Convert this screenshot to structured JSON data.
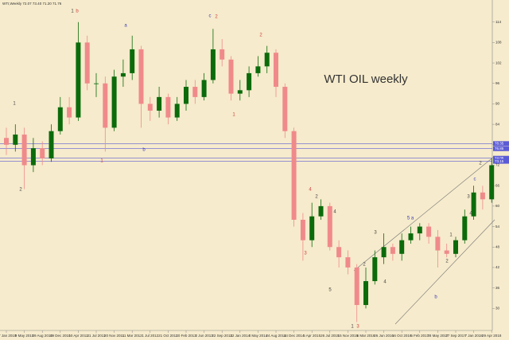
{
  "chart_data": {
    "type": "candlestick",
    "title": "WTI,Weekly  72.07 73.40 71.20 71.76",
    "label": "WTI OIL weekly",
    "categories": [
      "17 Jan 2010",
      null,
      "9 May 2010",
      null,
      "29 Aug 2010",
      null,
      "19 Dec 2010",
      null,
      "10 Apr 2011",
      null,
      "31 Jul 2011",
      null,
      "20 Nov 2011",
      null,
      "11 Mar 2012",
      null,
      "1 Jul 2012",
      null,
      "21 Oct 2012",
      null,
      "10 Feb 2013",
      null,
      "2 Jun 2013",
      null,
      "22 Sep 2013",
      null,
      "12 Jan 2014",
      null,
      "4 May 2014",
      null,
      "24 Aug 2014",
      null,
      "14 Dec 2014",
      null,
      "5 Apr 2015",
      null,
      "26 Jul 2015",
      null,
      "15 Nov 2015",
      null,
      "6 Mar 2016",
      null,
      "26 Jun 2016",
      null,
      "16 Oct 2016",
      null,
      "5 Feb 2017",
      null,
      "28 May 2017",
      null,
      "17 Sep 2017",
      null,
      "7 Jan 2018",
      null,
      "29 Apr 2018"
    ],
    "open": [
      80,
      78,
      81,
      72,
      77,
      74,
      82,
      89,
      86,
      108,
      96,
      96,
      83,
      98,
      99,
      106,
      90,
      88,
      92,
      86,
      90,
      95,
      92,
      97,
      106,
      103,
      93,
      94,
      99,
      101,
      105,
      95,
      82,
      56,
      50,
      57,
      60,
      48,
      45,
      42,
      31,
      38,
      45,
      48,
      46,
      50,
      52,
      54,
      51,
      47,
      46,
      50,
      57,
      64,
      62
    ],
    "high": [
      83,
      84,
      83,
      80,
      79,
      84,
      92,
      92,
      114,
      110,
      99,
      98,
      100,
      103,
      110,
      107,
      92,
      95,
      93,
      92,
      97,
      97,
      99,
      112,
      109,
      104,
      97,
      101,
      104,
      107,
      106,
      96,
      83,
      58,
      61,
      62,
      61,
      50,
      47,
      43,
      42,
      47,
      52,
      49,
      52,
      54,
      55,
      55,
      53,
      49,
      51,
      59,
      66,
      66,
      74
    ],
    "low": [
      75,
      76,
      65,
      70,
      72,
      73,
      81,
      84,
      85,
      94,
      92,
      76,
      82,
      95,
      97,
      83,
      85,
      86,
      84,
      85,
      88,
      90,
      91,
      96,
      101,
      91,
      91,
      92,
      98,
      99,
      92,
      80,
      54,
      44,
      48,
      56,
      47,
      42,
      40,
      26,
      30,
      37,
      43,
      44,
      44,
      49,
      50,
      49,
      42,
      45,
      45,
      49,
      56,
      59,
      61
    ],
    "close": [
      78,
      81,
      72,
      77,
      74,
      82,
      89,
      86,
      108,
      96,
      96,
      83,
      98,
      99,
      106,
      90,
      88,
      92,
      86,
      90,
      95,
      92,
      97,
      106,
      103,
      93,
      94,
      99,
      101,
      105,
      95,
      82,
      56,
      50,
      57,
      60,
      48,
      45,
      42,
      31,
      38,
      45,
      48,
      46,
      50,
      52,
      54,
      51,
      47,
      46,
      50,
      57,
      64,
      62,
      72
    ],
    "up_color": "#0b6b0b",
    "down_color": "#f08a8a",
    "ylim": [
      24,
      120
    ],
    "yticks": [
      30,
      36,
      42,
      48,
      54,
      60,
      66,
      72,
      78,
      84,
      90,
      96,
      102,
      108,
      114
    ],
    "levels": [
      78.35,
      76.85,
      74.05,
      73.15
    ],
    "level_color": "#5b5bd6",
    "annotations": [
      {
        "text": "1",
        "color": "#444"
      },
      {
        "text": "b",
        "color": "#d04040"
      },
      {
        "text": "a",
        "color": "#3a3ab8"
      },
      {
        "text": "c",
        "color": "#3a3ab8"
      },
      {
        "text": "2",
        "color": "#d04040"
      },
      {
        "text": "2",
        "color": "#d04040"
      },
      {
        "text": "1",
        "color": "#444"
      },
      {
        "text": "2",
        "color": "#444"
      },
      {
        "text": "1",
        "color": "#d04040"
      },
      {
        "text": "b",
        "color": "#3a3ab8"
      },
      {
        "text": "1",
        "color": "#d04040"
      },
      {
        "text": "4",
        "color": "#d04040"
      },
      {
        "text": "2",
        "color": "#444"
      },
      {
        "text": "3",
        "color": "#d04040"
      },
      {
        "text": "4",
        "color": "#444"
      },
      {
        "text": "5",
        "color": "#444"
      },
      {
        "text": "1",
        "color": "#444"
      },
      {
        "text": "3",
        "color": "#d04040"
      },
      {
        "text": "3",
        "color": "#444"
      },
      {
        "text": "2",
        "color": "#444"
      },
      {
        "text": "4",
        "color": "#444"
      },
      {
        "text": "5 a",
        "color": "#3a3ab8"
      },
      {
        "text": "b",
        "color": "#3a3ab8"
      },
      {
        "text": "2",
        "color": "#444"
      },
      {
        "text": "1",
        "color": "#444"
      },
      {
        "text": "c",
        "color": "#3a3ab8"
      },
      {
        "text": "3",
        "color": "#444"
      },
      {
        "text": "4",
        "color": "#444"
      },
      {
        "text": "2",
        "color": "#444"
      }
    ]
  }
}
